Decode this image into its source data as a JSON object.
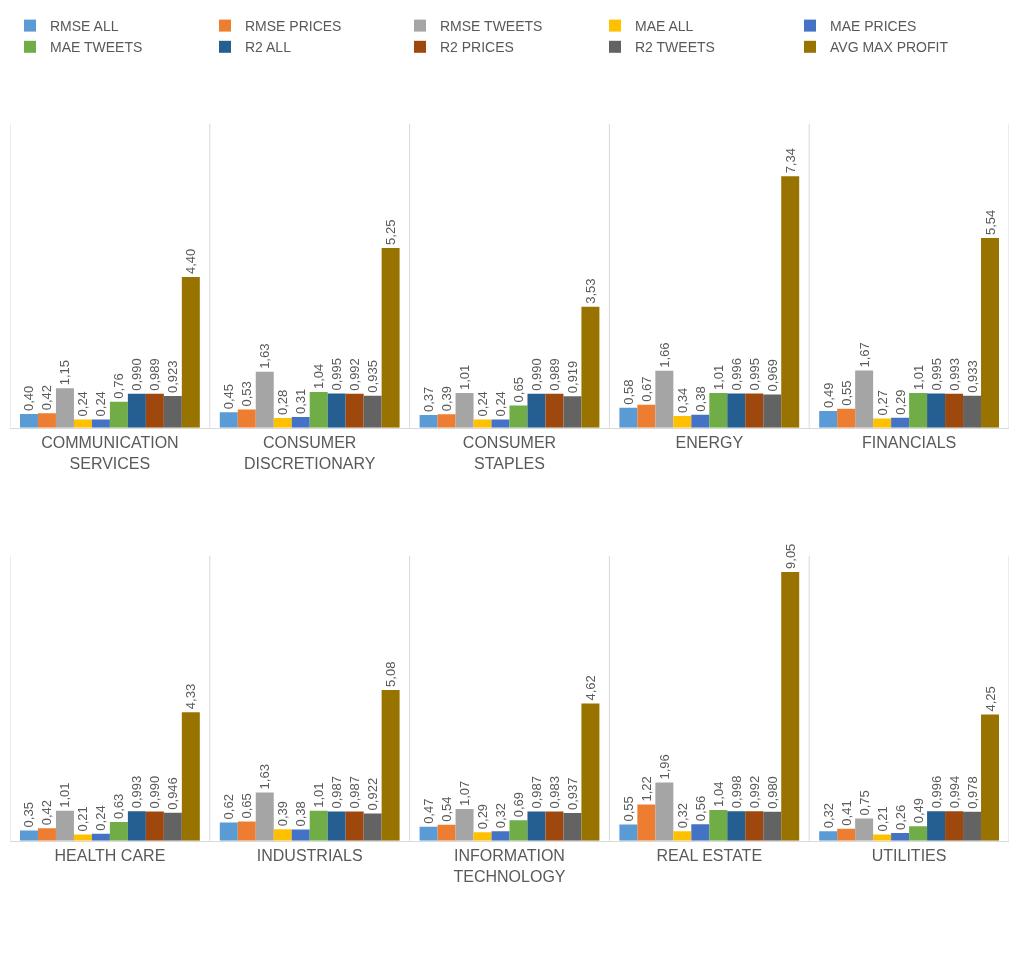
{
  "chart_data": [
    {
      "type": "bar",
      "legend": "top",
      "tick_labels": "x",
      "categories": [
        "COMMUNICATION SERVICES",
        "CONSUMER DISCRETIONARY",
        "CONSUMER STAPLES",
        "ENERGY",
        "FINANCIALS"
      ],
      "series": [
        {
          "name": "RMSE ALL",
          "color": "#5b9bd5",
          "values": [
            0.4,
            0.45,
            0.37,
            0.58,
            0.49
          ],
          "value_labels": [
            "0,40",
            "0,45",
            "0,37",
            "0,58",
            "0,49"
          ]
        },
        {
          "name": "RMSE PRICES",
          "color": "#ed7d31",
          "values": [
            0.42,
            0.53,
            0.39,
            0.67,
            0.55
          ],
          "value_labels": [
            "0,42",
            "0,53",
            "0,39",
            "0,67",
            "0,55"
          ]
        },
        {
          "name": "RMSE TWEETS",
          "color": "#a5a5a5",
          "values": [
            1.15,
            1.63,
            1.01,
            1.66,
            1.67
          ],
          "value_labels": [
            "1,15",
            "1,63",
            "1,01",
            "1,66",
            "1,67"
          ]
        },
        {
          "name": "MAE ALL",
          "color": "#ffc000",
          "values": [
            0.24,
            0.28,
            0.24,
            0.34,
            0.27
          ],
          "value_labels": [
            "0,24",
            "0,28",
            "0,24",
            "0,34",
            "0,27"
          ]
        },
        {
          "name": "MAE PRICES",
          "color": "#4472c4",
          "values": [
            0.24,
            0.31,
            0.24,
            0.38,
            0.29
          ],
          "value_labels": [
            "0,24",
            "0,31",
            "0,24",
            "0,38",
            "0,29"
          ]
        },
        {
          "name": "MAE TWEETS",
          "color": "#70ad47",
          "values": [
            0.76,
            1.04,
            0.65,
            1.01,
            1.01
          ],
          "value_labels": [
            "0,76",
            "1,04",
            "0,65",
            "1,01",
            "1,01"
          ]
        },
        {
          "name": "R2 ALL",
          "color": "#255e91",
          "values": [
            0.99,
            0.995,
            0.99,
            0.996,
            0.995
          ],
          "value_labels": [
            "0,990",
            "0,995",
            "0,990",
            "0,996",
            "0,995"
          ]
        },
        {
          "name": "R2 PRICES",
          "color": "#9e480e",
          "values": [
            0.989,
            0.992,
            0.989,
            0.995,
            0.993
          ],
          "value_labels": [
            "0,989",
            "0,992",
            "0,989",
            "0,995",
            "0,993"
          ]
        },
        {
          "name": "R2 TWEETS",
          "color": "#636363",
          "values": [
            0.923,
            0.935,
            0.919,
            0.969,
            0.933
          ],
          "value_labels": [
            "0,923",
            "0,935",
            "0,919",
            "0,969",
            "0,933"
          ]
        },
        {
          "name": "AVG MAX PROFIT",
          "color": "#997300",
          "values": [
            4.4,
            5.25,
            3.53,
            7.34,
            5.54
          ],
          "value_labels": [
            "4,40",
            "5,25",
            "3,53",
            "7,34",
            "5,54"
          ]
        }
      ]
    },
    {
      "type": "bar",
      "tick_labels": "x",
      "categories": [
        "HEALTH CARE",
        "INDUSTRIALS",
        "INFORMATION TECHNOLOGY",
        "REAL ESTATE",
        "UTILITIES"
      ],
      "series": [
        {
          "color": "#5b9bd5",
          "values": [
            0.35,
            0.62,
            0.47,
            0.55,
            0.32
          ],
          "value_labels": [
            "0,35",
            "0,62",
            "0,47",
            "0,55",
            "0,32"
          ]
        },
        {
          "color": "#ed7d31",
          "values": [
            0.42,
            0.65,
            0.54,
            1.22,
            0.41
          ],
          "value_labels": [
            "0,42",
            "0,65",
            "0,54",
            "1,22",
            "0,41"
          ]
        },
        {
          "color": "#a5a5a5",
          "values": [
            1.01,
            1.63,
            1.07,
            1.96,
            0.75
          ],
          "value_labels": [
            "1,01",
            "1,63",
            "1,07",
            "1,96",
            "0,75"
          ]
        },
        {
          "color": "#ffc000",
          "values": [
            0.21,
            0.39,
            0.29,
            0.32,
            0.21
          ],
          "value_labels": [
            "0,21",
            "0,39",
            "0,29",
            "0,32",
            "0,21"
          ]
        },
        {
          "color": "#4472c4",
          "values": [
            0.24,
            0.38,
            0.32,
            0.56,
            0.26
          ],
          "value_labels": [
            "0,24",
            "0,38",
            "0,32",
            "0,56",
            "0,26"
          ]
        },
        {
          "color": "#70ad47",
          "values": [
            0.63,
            1.01,
            0.69,
            1.04,
            0.49
          ],
          "value_labels": [
            "0,63",
            "1,01",
            "0,69",
            "1,04",
            "0,49"
          ]
        },
        {
          "color": "#255e91",
          "values": [
            0.993,
            0.987,
            0.987,
            0.998,
            0.996
          ],
          "value_labels": [
            "0,993",
            "0,987",
            "0,987",
            "0,998",
            "0,996"
          ]
        },
        {
          "color": "#9e480e",
          "values": [
            0.99,
            0.987,
            0.983,
            0.992,
            0.994
          ],
          "value_labels": [
            "0,990",
            "0,987",
            "0,983",
            "0,992",
            "0,994"
          ]
        },
        {
          "color": "#636363",
          "values": [
            0.946,
            0.922,
            0.937,
            0.98,
            0.978
          ],
          "value_labels": [
            "0,946",
            "0,922",
            "0,937",
            "0,980",
            "0,978"
          ]
        },
        {
          "color": "#997300",
          "values": [
            4.33,
            5.08,
            4.62,
            9.05,
            4.25
          ],
          "value_labels": [
            "4,33",
            "5,08",
            "4,62",
            "9,05",
            "4,25"
          ]
        }
      ]
    }
  ]
}
